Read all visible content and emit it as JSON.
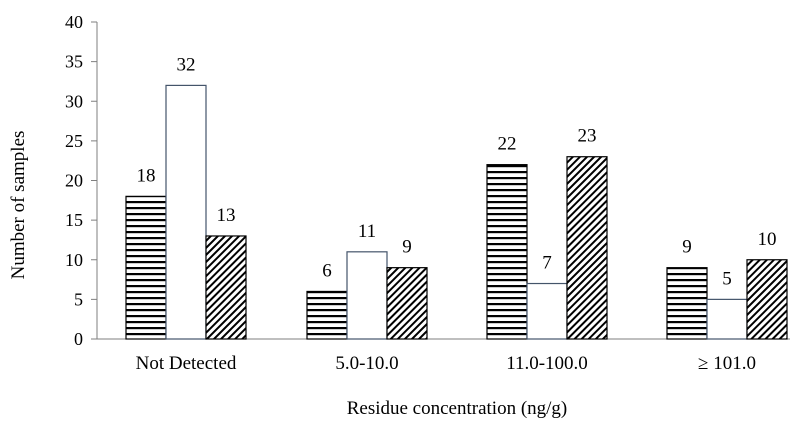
{
  "chart_data": {
    "type": "bar",
    "title": "",
    "xlabel": "Residue concentration (ng/g)",
    "ylabel": "Number of samples",
    "ylim": [
      0,
      40
    ],
    "yticks": [
      0,
      5,
      10,
      15,
      20,
      25,
      30,
      35,
      40
    ],
    "categories": [
      "Not Detected",
      "5.0-10.0",
      "11.0-100.0",
      "≥ 101.0"
    ],
    "series": [
      {
        "values": [
          18,
          6,
          22,
          9
        ],
        "pattern": "horizontal-lines"
      },
      {
        "values": [
          32,
          11,
          7,
          5
        ],
        "pattern": "solid-white"
      },
      {
        "values": [
          13,
          9,
          23,
          10
        ],
        "pattern": "diagonal-hatch"
      }
    ],
    "grid": false,
    "legend": "none",
    "colors": {
      "bar_stroke": "#000000",
      "series2_stroke": "#44546A",
      "axis": "#7f7f7f"
    }
  }
}
